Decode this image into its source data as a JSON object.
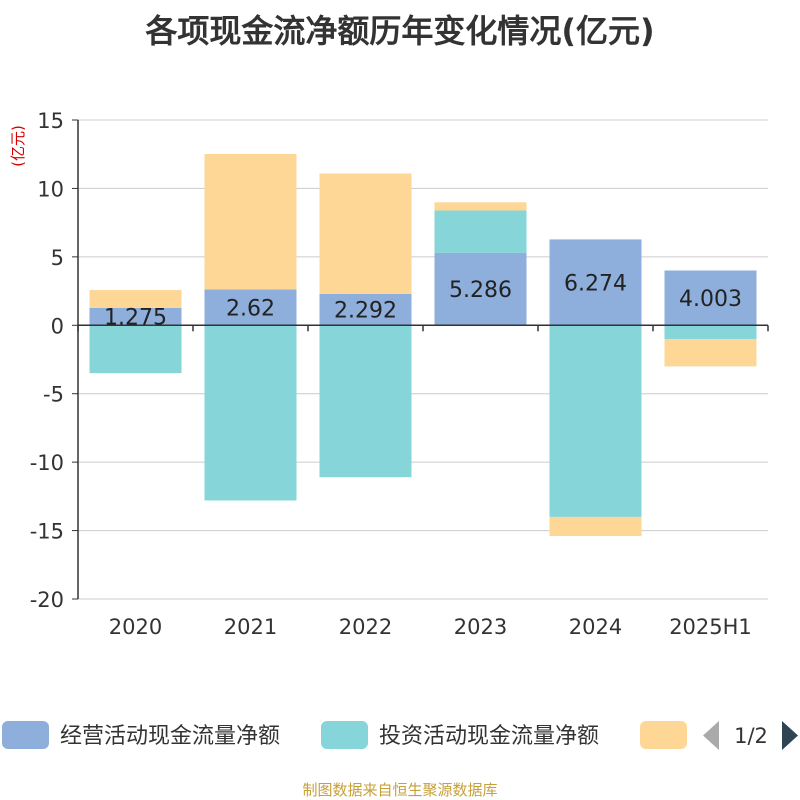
{
  "chart_data": {
    "type": "bar",
    "stacked": true,
    "title": "各项现金流净额历年变化情况(亿元)",
    "ylabel": "(亿元)",
    "ylim": [
      -20,
      15
    ],
    "yticks": [
      15,
      10,
      5,
      0,
      -5,
      -10,
      -15,
      -20
    ],
    "ytick_labels": [
      "15",
      "10",
      "5",
      "0",
      "-5",
      "-10",
      "-15",
      "-20"
    ],
    "grid": true,
    "categories": [
      "2020",
      "2021",
      "2022",
      "2023",
      "2024",
      "2025H1"
    ],
    "series": [
      {
        "name": "经营活动现金流量净额",
        "color": "#8eaedb",
        "values": [
          1.275,
          2.62,
          2.292,
          5.286,
          6.274,
          4.003
        ]
      },
      {
        "name": "投资活动现金流量净额",
        "color": "#86d5d8",
        "values": [
          -3.5,
          -12.8,
          -11.1,
          3.1,
          -14.0,
          -1.0
        ]
      },
      {
        "name": "",
        "color": "#fed797",
        "values": [
          1.3,
          9.9,
          8.8,
          0.6,
          -1.4,
          -2.0
        ]
      }
    ],
    "data_labels": [
      "1.275",
      "2.62",
      "2.292",
      "5.286",
      "6.274",
      "4.003"
    ],
    "legend_position": "bottom",
    "legend_page": "1/2"
  },
  "source_note": "制图数据来自恒生聚源数据库"
}
